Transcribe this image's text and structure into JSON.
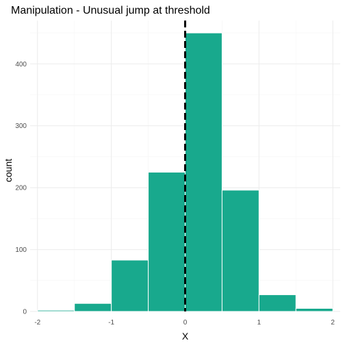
{
  "chart_data": {
    "type": "bar",
    "title": "Manipulation - Unusual jump at threshold",
    "xlabel": "X",
    "ylabel": "count",
    "xlim": [
      -2.1,
      2.1
    ],
    "ylim": [
      0,
      470
    ],
    "x_ticks": [
      "-2",
      "-1",
      "0",
      "1",
      "2"
    ],
    "y_ticks": [
      "0",
      "100",
      "200",
      "300",
      "400"
    ],
    "bins": [
      {
        "x0": -2.0,
        "x1": -1.5,
        "count": 2
      },
      {
        "x0": -1.5,
        "x1": -1.0,
        "count": 13
      },
      {
        "x0": -1.0,
        "x1": -0.5,
        "count": 83
      },
      {
        "x0": -0.5,
        "x1": 0.0,
        "count": 225
      },
      {
        "x0": 0.0,
        "x1": 0.5,
        "count": 450
      },
      {
        "x0": 0.5,
        "x1": 1.0,
        "count": 196
      },
      {
        "x0": 1.0,
        "x1": 1.5,
        "count": 27
      },
      {
        "x0": 1.5,
        "x1": 2.0,
        "count": 5
      }
    ],
    "threshold": 0,
    "grid": true,
    "colors": {
      "bar_fill": "#18a98d",
      "bar_outline": "#ffffff",
      "threshold_line": "#000000",
      "grid_major": "#ebebeb",
      "grid_minor": "#f5f5f5"
    }
  }
}
